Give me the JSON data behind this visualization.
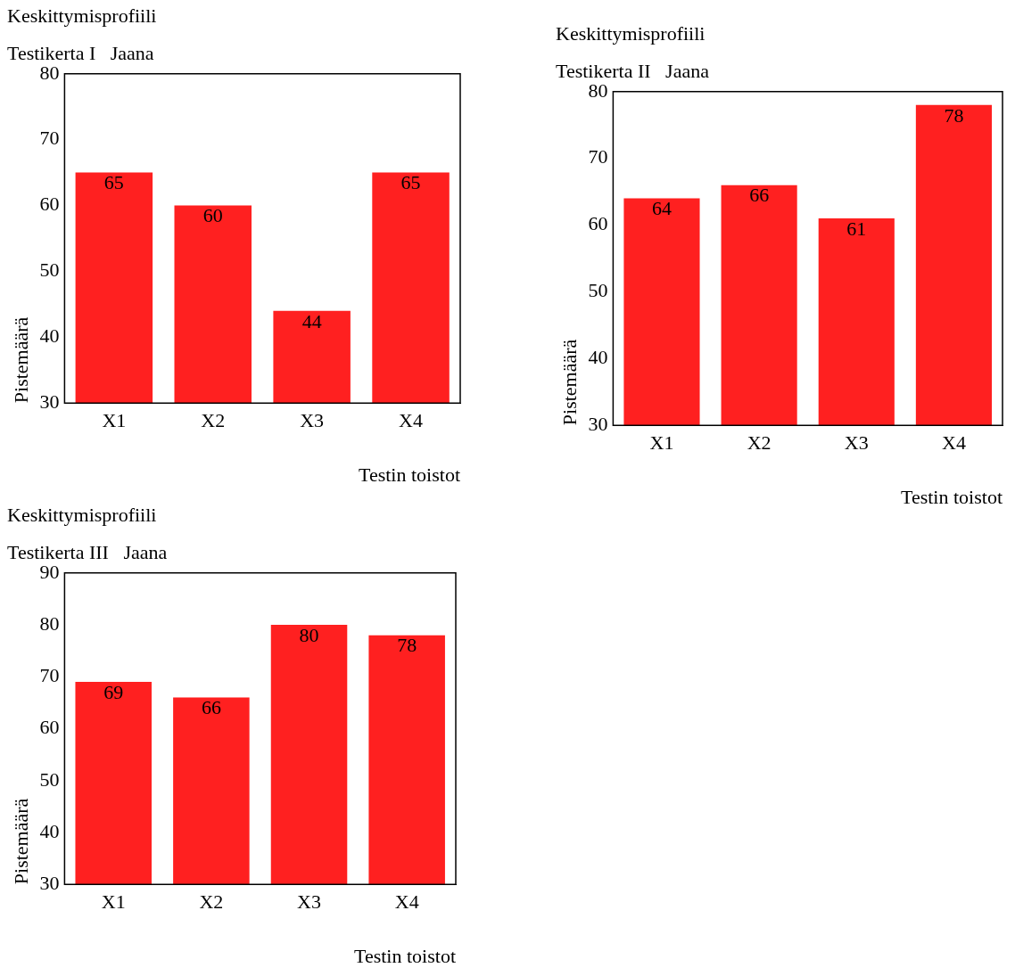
{
  "chart_data": [
    {
      "type": "bar",
      "title": "Keskittymisprofiili",
      "subtitle": "Testikerta I   Jaana",
      "xlabel": "Testin toistot",
      "ylabel": "Pistemäärä",
      "categories": [
        "X1",
        "X2",
        "X3",
        "X4"
      ],
      "values": [
        65,
        60,
        44,
        65
      ],
      "color": "#ff2020",
      "ylim": [
        30,
        80
      ],
      "yticks": [
        30,
        40,
        50,
        60,
        70,
        80
      ],
      "data_labels": true
    },
    {
      "type": "bar",
      "title": "Keskittymisprofiili",
      "subtitle": "Testikerta II   Jaana",
      "xlabel": "Testin toistot",
      "ylabel": "Pistemäärä",
      "categories": [
        "X1",
        "X2",
        "X3",
        "X4"
      ],
      "values": [
        64,
        66,
        61,
        78
      ],
      "color": "#ff2020",
      "ylim": [
        30,
        80
      ],
      "yticks": [
        30,
        40,
        50,
        60,
        70,
        80
      ],
      "data_labels": true
    },
    {
      "type": "bar",
      "title": "Keskittymisprofiili",
      "subtitle": "Testikerta III   Jaana",
      "xlabel": "Testin toistot",
      "ylabel": "Pistemäärä",
      "categories": [
        "X1",
        "X2",
        "X3",
        "X4"
      ],
      "values": [
        69,
        66,
        80,
        78
      ],
      "color": "#ff2020",
      "ylim": [
        30,
        90
      ],
      "yticks": [
        30,
        40,
        50,
        60,
        70,
        80,
        90
      ],
      "data_labels": true
    }
  ]
}
